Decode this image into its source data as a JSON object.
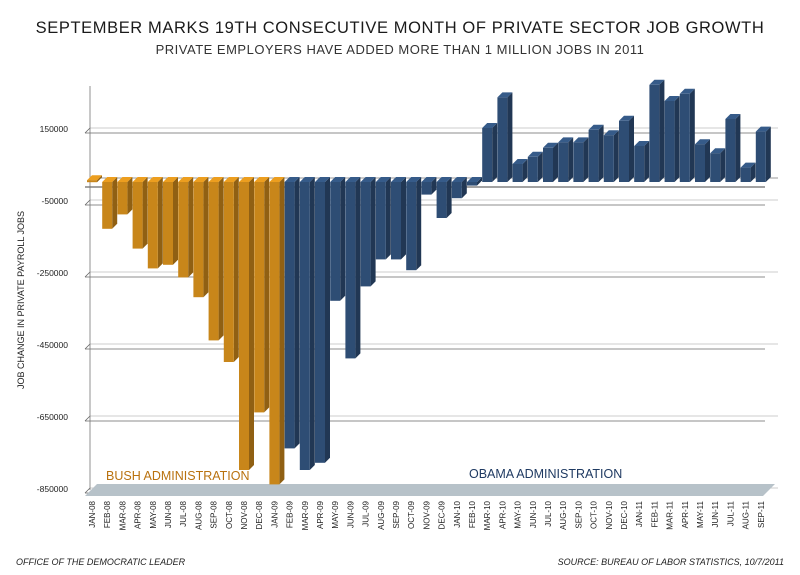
{
  "title": "SEPTEMBER MARKS 19TH CONSECUTIVE MONTH OF PRIVATE SECTOR JOB GROWTH",
  "subtitle": "PRIVATE EMPLOYERS HAVE ADDED MORE THAN 1 MILLION JOBS IN 2011",
  "footer_left": "OFFICE OF THE DEMOCRATIC LEADER",
  "footer_right": "SOURCE: BUREAU OF LABOR STATISTICS, 10/7/2011",
  "colors": {
    "bush": "#c8861a",
    "obama": "#2e4d74",
    "floor": "#b7c2c9",
    "grid": "#666666"
  },
  "chart_data": {
    "type": "bar",
    "title": "SEPTEMBER MARKS 19TH CONSECUTIVE MONTH OF PRIVATE SECTOR JOB GROWTH",
    "subtitle": "PRIVATE EMPLOYERS HAVE ADDED MORE THAN 1 MILLION JOBS IN 2011",
    "xlabel": "",
    "ylabel": "JOB CHANGE IN PRIVATE PAYROLL JOBS",
    "ylim": [
      -850000,
      250000
    ],
    "yticks": [
      150000,
      -50000,
      -250000,
      -450000,
      -650000,
      -850000
    ],
    "ytick_labels": [
      "150000",
      "-50000",
      "-250000",
      "-450000",
      "-650000",
      "-850000"
    ],
    "grid": true,
    "categories": [
      "JAN-08",
      "FEB-08",
      "MAR-08",
      "APR-08",
      "MAY-08",
      "JUN-08",
      "JUL-08",
      "AUG-08",
      "SEP-08",
      "OCT-08",
      "NOV-08",
      "DEC-08",
      "JAN-09",
      "FEB-09",
      "MAR-09",
      "APR-09",
      "MAY-09",
      "JUN-09",
      "JUL-09",
      "AUG-09",
      "SEP-09",
      "OCT-09",
      "NOV-09",
      "DEC-09",
      "JAN-10",
      "FEB-10",
      "MAR-10",
      "APR-10",
      "MAY-10",
      "JUN-10",
      "JUL-10",
      "AUG-10",
      "SEP-10",
      "OCT-10",
      "NOV-10",
      "DEC-10",
      "JAN-11",
      "FEB-11",
      "MAR-11",
      "APR-11",
      "MAY-11",
      "JUN-11",
      "JUL-11",
      "AUG-11",
      "SEP-11"
    ],
    "values": [
      5000,
      -130000,
      -90000,
      -185000,
      -240000,
      -230000,
      -265000,
      -320000,
      -440000,
      -500000,
      -800000,
      -640000,
      -840000,
      -740000,
      -800000,
      -780000,
      -330000,
      -490000,
      -290000,
      -215000,
      -215000,
      -245000,
      -35000,
      -100000,
      -45000,
      -10000,
      150000,
      235000,
      50000,
      70000,
      95000,
      110000,
      110000,
      145000,
      130000,
      170000,
      100000,
      270000,
      225000,
      245000,
      105000,
      80000,
      175000,
      40000,
      140000
    ],
    "series": [
      {
        "name": "BUSH ADMINISTRATION",
        "start_index": 0,
        "end_index": 12
      },
      {
        "name": "OBAMA ADMINISTRATION",
        "start_index": 13,
        "end_index": 44
      }
    ],
    "annotations": [
      "BUSH ADMINISTRATION",
      "OBAMA ADMINISTRATION"
    ]
  }
}
